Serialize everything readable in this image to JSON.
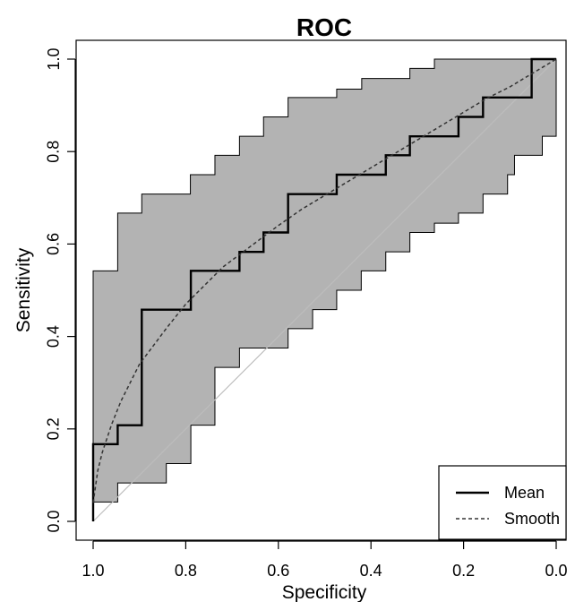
{
  "chart_data": {
    "type": "line",
    "title": "ROC",
    "xlabel": "Specificity",
    "ylabel": "Sensitivity",
    "xlim": [
      1.0,
      0.0
    ],
    "ylim": [
      0.0,
      1.0
    ],
    "x_reversed": true,
    "x_ticks": [
      1.0,
      0.8,
      0.6,
      0.4,
      0.2,
      0.0
    ],
    "x_tick_labels": [
      "1.0",
      "0.8",
      "0.6",
      "0.4",
      "0.2",
      "0.0"
    ],
    "y_ticks": [
      0.0,
      0.2,
      0.4,
      0.6,
      0.8,
      1.0
    ],
    "y_tick_labels": [
      "0.0",
      "0.2",
      "0.4",
      "0.6",
      "0.8",
      "1.0"
    ],
    "grid": false,
    "legend_position": "bottom-right",
    "series": [
      {
        "name": "Mean",
        "style": "solid",
        "color": "#000000",
        "x": [
          1.0,
          1.0,
          0.947,
          0.947,
          0.895,
          0.895,
          0.789,
          0.789,
          0.684,
          0.684,
          0.632,
          0.632,
          0.579,
          0.579,
          0.474,
          0.474,
          0.368,
          0.368,
          0.316,
          0.316,
          0.211,
          0.211,
          0.158,
          0.158,
          0.053,
          0.053,
          0.0
        ],
        "y": [
          0.0,
          0.167,
          0.167,
          0.208,
          0.208,
          0.458,
          0.458,
          0.542,
          0.542,
          0.583,
          0.583,
          0.625,
          0.625,
          0.708,
          0.708,
          0.75,
          0.75,
          0.792,
          0.792,
          0.833,
          0.833,
          0.875,
          0.875,
          0.917,
          0.917,
          1.0,
          1.0
        ]
      },
      {
        "name": "Smooth",
        "style": "dashed",
        "color": "#333333",
        "x": [
          1.0,
          0.99,
          0.98,
          0.96,
          0.94,
          0.92,
          0.9,
          0.87,
          0.84,
          0.8,
          0.76,
          0.72,
          0.68,
          0.64,
          0.6,
          0.55,
          0.5,
          0.45,
          0.4,
          0.35,
          0.3,
          0.25,
          0.2,
          0.15,
          0.1,
          0.05,
          0.0
        ],
        "y": [
          0.04,
          0.11,
          0.15,
          0.21,
          0.26,
          0.3,
          0.34,
          0.38,
          0.42,
          0.47,
          0.51,
          0.55,
          0.58,
          0.61,
          0.64,
          0.675,
          0.705,
          0.735,
          0.765,
          0.795,
          0.825,
          0.855,
          0.885,
          0.915,
          0.94,
          0.97,
          1.0
        ]
      }
    ],
    "confidence_band": {
      "color": "#b3b3b3",
      "upper": [
        [
          1.0,
          0.0
        ],
        [
          1.0,
          0.542
        ],
        [
          0.947,
          0.542
        ],
        [
          0.947,
          0.667
        ],
        [
          0.895,
          0.667
        ],
        [
          0.895,
          0.708
        ],
        [
          0.79,
          0.708
        ],
        [
          0.79,
          0.75
        ],
        [
          0.737,
          0.75
        ],
        [
          0.737,
          0.792
        ],
        [
          0.684,
          0.792
        ],
        [
          0.684,
          0.833
        ],
        [
          0.632,
          0.833
        ],
        [
          0.632,
          0.875
        ],
        [
          0.579,
          0.875
        ],
        [
          0.579,
          0.917
        ],
        [
          0.474,
          0.917
        ],
        [
          0.474,
          0.935
        ],
        [
          0.42,
          0.935
        ],
        [
          0.42,
          0.958
        ],
        [
          0.316,
          0.958
        ],
        [
          0.316,
          0.98
        ],
        [
          0.263,
          0.98
        ],
        [
          0.263,
          1.0
        ],
        [
          0.0,
          1.0
        ]
      ],
      "lower": [
        [
          0.0,
          0.833
        ],
        [
          0.03,
          0.833
        ],
        [
          0.03,
          0.792
        ],
        [
          0.09,
          0.792
        ],
        [
          0.09,
          0.75
        ],
        [
          0.105,
          0.75
        ],
        [
          0.105,
          0.708
        ],
        [
          0.158,
          0.708
        ],
        [
          0.158,
          0.667
        ],
        [
          0.211,
          0.667
        ],
        [
          0.211,
          0.645
        ],
        [
          0.263,
          0.645
        ],
        [
          0.263,
          0.625
        ],
        [
          0.316,
          0.625
        ],
        [
          0.316,
          0.583
        ],
        [
          0.368,
          0.583
        ],
        [
          0.368,
          0.542
        ],
        [
          0.421,
          0.542
        ],
        [
          0.421,
          0.5
        ],
        [
          0.474,
          0.5
        ],
        [
          0.474,
          0.458
        ],
        [
          0.526,
          0.458
        ],
        [
          0.526,
          0.417
        ],
        [
          0.579,
          0.417
        ],
        [
          0.579,
          0.375
        ],
        [
          0.684,
          0.375
        ],
        [
          0.684,
          0.333
        ],
        [
          0.737,
          0.333
        ],
        [
          0.737,
          0.208
        ],
        [
          0.789,
          0.208
        ],
        [
          0.789,
          0.125
        ],
        [
          0.842,
          0.125
        ],
        [
          0.842,
          0.083
        ],
        [
          0.947,
          0.083
        ],
        [
          0.947,
          0.042
        ],
        [
          1.0,
          0.042
        ],
        [
          1.0,
          0.0
        ]
      ]
    },
    "reference_line": {
      "x": [
        1.0,
        0.0
      ],
      "y": [
        0.0,
        1.0
      ],
      "color": "#bdbdbd"
    }
  }
}
